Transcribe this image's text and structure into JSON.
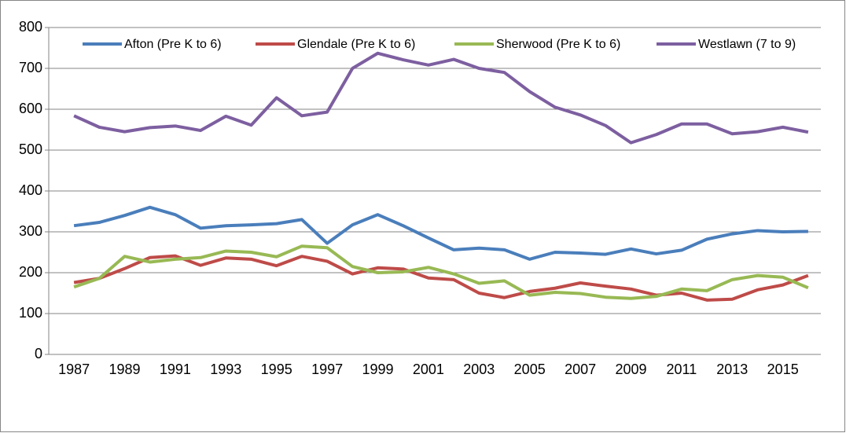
{
  "chart_data": {
    "type": "line",
    "categories": [
      "1987",
      null,
      "1989",
      null,
      "1991",
      null,
      "1993",
      null,
      "1995",
      null,
      "1997",
      null,
      "1999",
      null,
      "2001",
      null,
      "2003",
      null,
      "2005",
      null,
      "2007",
      null,
      "2009",
      null,
      "2011",
      null,
      "2013",
      null,
      "2015",
      null
    ],
    "series": [
      {
        "name": "Afton (Pre K to 6)",
        "color": "#4a7ebb",
        "values": [
          315,
          323,
          340,
          360,
          342,
          309,
          315,
          317,
          320,
          330,
          272,
          317,
          342,
          315,
          285,
          256,
          260,
          256,
          233,
          250,
          248,
          245,
          258,
          246,
          255,
          282,
          295,
          303,
          300,
          301
        ]
      },
      {
        "name": "Glendale (Pre K to 6)",
        "color": "#be4b48",
        "values": [
          176,
          186,
          210,
          237,
          241,
          218,
          236,
          233,
          217,
          240,
          228,
          197,
          212,
          209,
          187,
          183,
          150,
          139,
          154,
          162,
          175,
          167,
          160,
          145,
          150,
          133,
          135,
          158,
          170,
          193
        ]
      },
      {
        "name": "Sherwood (Pre K to 6)",
        "color": "#98b954",
        "values": [
          165,
          186,
          240,
          226,
          233,
          237,
          253,
          250,
          239,
          265,
          261,
          215,
          200,
          202,
          213,
          197,
          174,
          180,
          145,
          152,
          149,
          140,
          137,
          142,
          160,
          156,
          183,
          193,
          189,
          163
        ]
      },
      {
        "name": "Westlawn (7 to 9)",
        "color": "#7d5fa0",
        "values": [
          584,
          556,
          545,
          555,
          559,
          548,
          583,
          561,
          628,
          584,
          593,
          700,
          737,
          721,
          708,
          722,
          700,
          690,
          643,
          605,
          586,
          560,
          518,
          538,
          564,
          564,
          540,
          545,
          556,
          544
        ]
      }
    ],
    "ylim": [
      0,
      800
    ],
    "yticks": [
      0,
      100,
      200,
      300,
      400,
      500,
      600,
      700,
      800
    ],
    "grid": true,
    "legend": "top"
  }
}
